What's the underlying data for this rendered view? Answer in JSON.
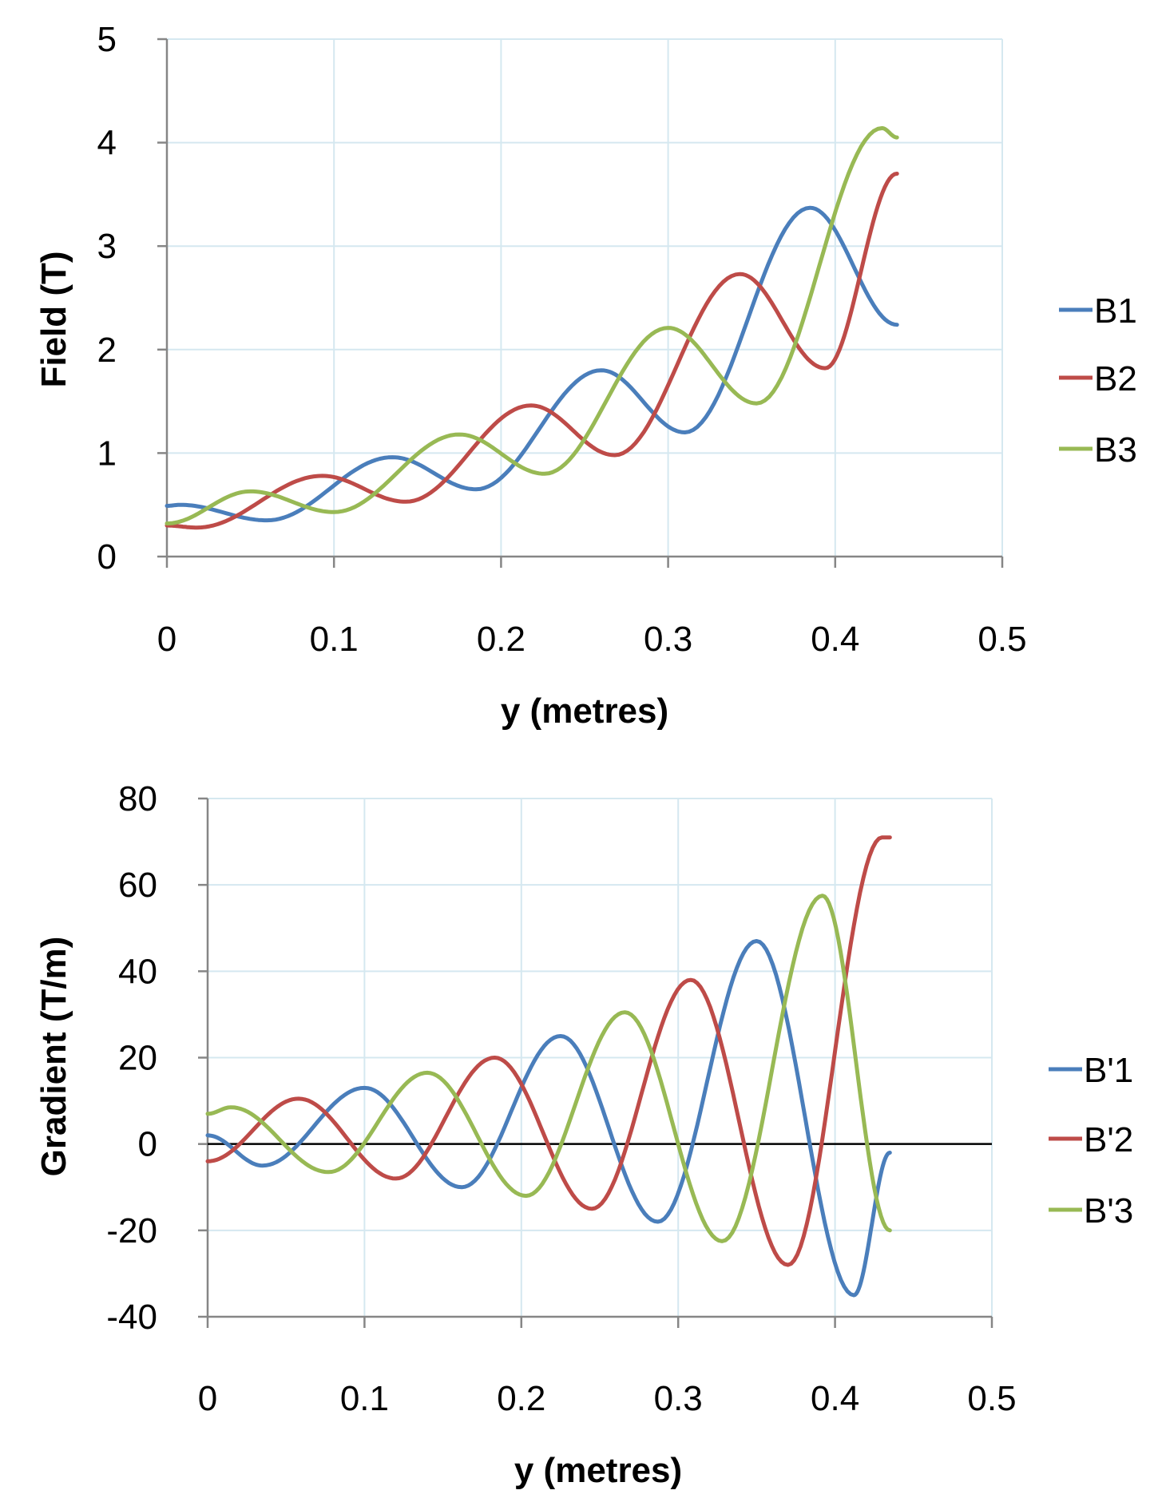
{
  "chart_data": [
    {
      "type": "line",
      "xlabel": "y (metres)",
      "ylabel": "Field (T)",
      "xlim": [
        0,
        0.5
      ],
      "ylim": [
        0,
        5
      ],
      "xticks": [
        "0",
        "0.1",
        "0.2",
        "0.3",
        "0.4",
        "0.5"
      ],
      "yticks": [
        "0",
        "1",
        "2",
        "3",
        "4",
        "5"
      ],
      "grid": true,
      "legend": "right",
      "series": [
        {
          "name": "B1",
          "color": "#4a7ebb",
          "x": [
            0,
            0.008,
            0.06,
            0.135,
            0.185,
            0.26,
            0.31,
            0.385,
            0.437
          ],
          "y": [
            0.49,
            0.5,
            0.35,
            0.96,
            0.65,
            1.8,
            1.2,
            3.37,
            2.24
          ]
        },
        {
          "name": "B2",
          "color": "#be4b48",
          "x": [
            0,
            0.018,
            0.093,
            0.143,
            0.218,
            0.268,
            0.343,
            0.394,
            0.437
          ],
          "y": [
            0.3,
            0.28,
            0.78,
            0.53,
            1.46,
            0.98,
            2.73,
            1.82,
            3.7
          ]
        },
        {
          "name": "B3",
          "color": "#98b954",
          "x": [
            0,
            0.05,
            0.1,
            0.175,
            0.226,
            0.3,
            0.353,
            0.428,
            0.437
          ],
          "y": [
            0.32,
            0.63,
            0.43,
            1.18,
            0.8,
            2.21,
            1.48,
            4.14,
            4.05
          ]
        }
      ]
    },
    {
      "type": "line",
      "xlabel": "y (metres)",
      "ylabel": "Gradient (T/m)",
      "xlim": [
        0,
        0.5
      ],
      "ylim": [
        -40,
        80
      ],
      "xticks": [
        "0",
        "0.1",
        "0.2",
        "0.3",
        "0.4",
        "0.5"
      ],
      "yticks": [
        "-40",
        "-20",
        "0",
        "20",
        "40",
        "60",
        "80"
      ],
      "grid": true,
      "legend": "right",
      "series": [
        {
          "name": "B'1",
          "color": "#4a7ebb",
          "x": [
            0,
            0.035,
            0.1,
            0.162,
            0.225,
            0.287,
            0.35,
            0.412,
            0.435
          ],
          "y": [
            2,
            -5,
            13,
            -10,
            25,
            -18,
            47,
            -35,
            -2
          ]
        },
        {
          "name": "B'2",
          "color": "#be4b48",
          "x": [
            0,
            0.058,
            0.12,
            0.183,
            0.245,
            0.308,
            0.37,
            0.43,
            0.435
          ],
          "y": [
            -4,
            10.5,
            -8,
            20,
            -15,
            38,
            -28,
            71,
            71
          ]
        },
        {
          "name": "B'3",
          "color": "#98b954",
          "x": [
            0,
            0.015,
            0.077,
            0.14,
            0.203,
            0.266,
            0.328,
            0.392,
            0.435
          ],
          "y": [
            7,
            8.5,
            -6.5,
            16.5,
            -12,
            30.5,
            -22.5,
            57.5,
            -20
          ]
        }
      ]
    }
  ]
}
